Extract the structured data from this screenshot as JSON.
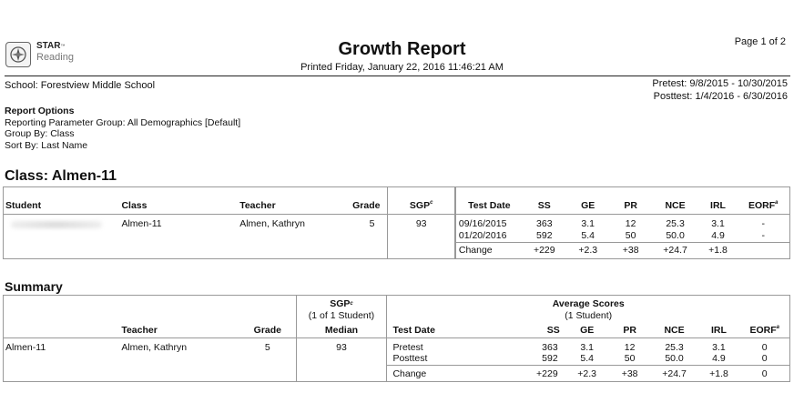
{
  "header": {
    "logo_brand": "STAR",
    "logo_tm": "™",
    "logo_product": "Reading",
    "title": "Growth Report",
    "printed": "Printed Friday, January 22, 2016 11:46:21 AM",
    "page": "Page 1 of 2",
    "school": "School: Forestview Middle School",
    "pretest": "Pretest: 9/8/2015 - 10/30/2015",
    "posttest": "Posttest: 1/4/2016 - 6/30/2016"
  },
  "report_options": {
    "heading": "Report Options",
    "lines": [
      "Reporting Parameter Group: All Demographics [Default]",
      "Group By: Class",
      "Sort By: Last Name"
    ]
  },
  "class_section": {
    "heading": "Class: Almen-11",
    "columns": {
      "student": "Student",
      "class": "Class",
      "teacher": "Teacher",
      "grade": "Grade",
      "sgp": "SGP",
      "sgp_mark": "c",
      "test_date": "Test Date",
      "ss": "SS",
      "ge": "GE",
      "pr": "PR",
      "nce": "NCE",
      "irl": "IRL",
      "eorf": "EORF",
      "eorf_mark": "a"
    },
    "row": {
      "class": "Almen-11",
      "teacher": "Almen, Kathryn",
      "grade": "5",
      "sgp": "93",
      "tests": [
        {
          "date": "09/16/2015",
          "ss": "363",
          "ge": "3.1",
          "pr": "12",
          "nce": "25.3",
          "irl": "3.1",
          "eorf": "-"
        },
        {
          "date": "01/20/2016",
          "ss": "592",
          "ge": "5.4",
          "pr": "50",
          "nce": "50.0",
          "irl": "4.9",
          "eorf": "-"
        }
      ],
      "change": {
        "label": "Change",
        "ss": "+229",
        "ge": "+2.3",
        "pr": "+38",
        "nce": "+24.7",
        "irl": "+1.8"
      }
    }
  },
  "summary": {
    "heading": "Summary",
    "columns": {
      "teacher": "Teacher",
      "grade": "Grade",
      "sgp": "SGP",
      "sgp_mark": "c",
      "sgp_sub": "(1 of 1 Student)",
      "sgp_median": "Median",
      "avg": "Average Scores",
      "avg_sub": "(1 Student)",
      "test_date": "Test Date",
      "ss": "SS",
      "ge": "GE",
      "pr": "PR",
      "nce": "NCE",
      "irl": "IRL",
      "eorf": "EORF",
      "eorf_mark": "a"
    },
    "row": {
      "class": "Almen-11",
      "teacher": "Almen, Kathryn",
      "grade": "5",
      "sgp": "93",
      "tests": [
        {
          "label": "Pretest",
          "ss": "363",
          "ge": "3.1",
          "pr": "12",
          "nce": "25.3",
          "irl": "3.1",
          "eorf": "0"
        },
        {
          "label": "Posttest",
          "ss": "592",
          "ge": "5.4",
          "pr": "50",
          "nce": "50.0",
          "irl": "4.9",
          "eorf": "0"
        }
      ],
      "change": {
        "label": "Change",
        "ss": "+229",
        "ge": "+2.3",
        "pr": "+38",
        "nce": "+24.7",
        "irl": "+1.8",
        "eorf": "0"
      }
    }
  }
}
